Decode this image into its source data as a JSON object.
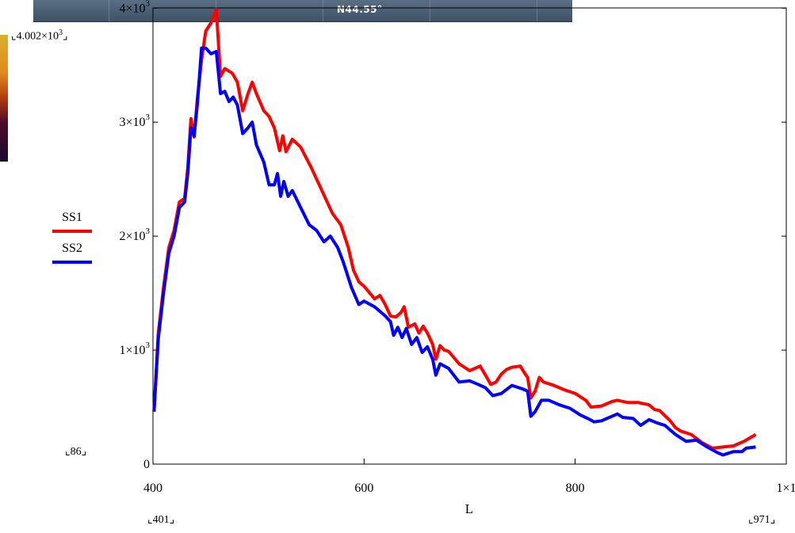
{
  "header_strip": {
    "label": "N44.55°"
  },
  "markers": {
    "ymax": "4.002×10",
    "ymax_exp": "3",
    "ymin": "86",
    "xmin": "401",
    "xmax": "971"
  },
  "chart_data": {
    "type": "line",
    "xlabel": "L",
    "ylabel": "",
    "xlim": [
      400,
      1000
    ],
    "ylim": [
      0,
      4002
    ],
    "x_ticks": [
      400,
      600,
      800,
      1000
    ],
    "x_tick_labels": [
      "400",
      "600",
      "800",
      "1×1"
    ],
    "y_ticks": [
      0,
      1000,
      2000,
      3000,
      4000
    ],
    "y_tick_labels": [
      {
        "base": "0",
        "exp": ""
      },
      {
        "base": "1×10",
        "exp": "3"
      },
      {
        "base": "2×10",
        "exp": "3"
      },
      {
        "base": "3×10",
        "exp": "3"
      },
      {
        "base": "4×10",
        "exp": "3"
      }
    ],
    "series": [
      {
        "name": "SS1",
        "color": "#ff0000",
        "points": [
          [
            401,
            460
          ],
          [
            405,
            1150
          ],
          [
            410,
            1550
          ],
          [
            415,
            1900
          ],
          [
            420,
            2050
          ],
          [
            425,
            2300
          ],
          [
            430,
            2330
          ],
          [
            433,
            2600
          ],
          [
            436,
            3030
          ],
          [
            439,
            2870
          ],
          [
            442,
            3200
          ],
          [
            446,
            3550
          ],
          [
            450,
            3800
          ],
          [
            455,
            3870
          ],
          [
            460,
            3990
          ],
          [
            464,
            3400
          ],
          [
            468,
            3470
          ],
          [
            475,
            3430
          ],
          [
            480,
            3350
          ],
          [
            485,
            3100
          ],
          [
            490,
            3250
          ],
          [
            494,
            3350
          ],
          [
            498,
            3250
          ],
          [
            505,
            3100
          ],
          [
            510,
            3050
          ],
          [
            515,
            2950
          ],
          [
            520,
            2750
          ],
          [
            523,
            2880
          ],
          [
            526,
            2740
          ],
          [
            532,
            2850
          ],
          [
            540,
            2780
          ],
          [
            550,
            2600
          ],
          [
            560,
            2400
          ],
          [
            570,
            2200
          ],
          [
            578,
            2100
          ],
          [
            585,
            1900
          ],
          [
            590,
            1700
          ],
          [
            595,
            1600
          ],
          [
            600,
            1560
          ],
          [
            610,
            1450
          ],
          [
            615,
            1480
          ],
          [
            620,
            1400
          ],
          [
            625,
            1300
          ],
          [
            630,
            1290
          ],
          [
            635,
            1330
          ],
          [
            638,
            1380
          ],
          [
            642,
            1200
          ],
          [
            648,
            1230
          ],
          [
            652,
            1150
          ],
          [
            656,
            1210
          ],
          [
            660,
            1150
          ],
          [
            665,
            1050
          ],
          [
            668,
            920
          ],
          [
            672,
            1040
          ],
          [
            676,
            1000
          ],
          [
            680,
            990
          ],
          [
            690,
            880
          ],
          [
            700,
            820
          ],
          [
            705,
            840
          ],
          [
            710,
            860
          ],
          [
            715,
            780
          ],
          [
            720,
            700
          ],
          [
            725,
            720
          ],
          [
            730,
            790
          ],
          [
            735,
            830
          ],
          [
            740,
            850
          ],
          [
            748,
            860
          ],
          [
            752,
            800
          ],
          [
            755,
            760
          ],
          [
            758,
            580
          ],
          [
            762,
            640
          ],
          [
            766,
            760
          ],
          [
            770,
            720
          ],
          [
            780,
            690
          ],
          [
            790,
            650
          ],
          [
            800,
            620
          ],
          [
            810,
            560
          ],
          [
            815,
            500
          ],
          [
            825,
            510
          ],
          [
            835,
            550
          ],
          [
            840,
            560
          ],
          [
            850,
            540
          ],
          [
            860,
            540
          ],
          [
            870,
            520
          ],
          [
            875,
            480
          ],
          [
            880,
            470
          ],
          [
            890,
            380
          ],
          [
            895,
            320
          ],
          [
            900,
            290
          ],
          [
            910,
            260
          ],
          [
            920,
            190
          ],
          [
            930,
            140
          ],
          [
            940,
            150
          ],
          [
            950,
            160
          ],
          [
            960,
            200
          ],
          [
            971,
            260
          ]
        ]
      },
      {
        "name": "SS2",
        "color": "#0000ff",
        "points": [
          [
            401,
            460
          ],
          [
            405,
            1100
          ],
          [
            410,
            1500
          ],
          [
            415,
            1850
          ],
          [
            420,
            2000
          ],
          [
            425,
            2250
          ],
          [
            430,
            2300
          ],
          [
            433,
            2550
          ],
          [
            436,
            2950
          ],
          [
            439,
            2880
          ],
          [
            442,
            3150
          ],
          [
            446,
            3650
          ],
          [
            450,
            3650
          ],
          [
            455,
            3600
          ],
          [
            460,
            3620
          ],
          [
            464,
            3250
          ],
          [
            468,
            3270
          ],
          [
            472,
            3180
          ],
          [
            476,
            3220
          ],
          [
            480,
            3150
          ],
          [
            485,
            2900
          ],
          [
            490,
            2950
          ],
          [
            494,
            3000
          ],
          [
            498,
            2800
          ],
          [
            505,
            2650
          ],
          [
            510,
            2450
          ],
          [
            515,
            2450
          ],
          [
            518,
            2550
          ],
          [
            521,
            2350
          ],
          [
            524,
            2480
          ],
          [
            528,
            2350
          ],
          [
            532,
            2400
          ],
          [
            540,
            2250
          ],
          [
            548,
            2100
          ],
          [
            555,
            2050
          ],
          [
            562,
            1950
          ],
          [
            568,
            2000
          ],
          [
            575,
            1900
          ],
          [
            580,
            1780
          ],
          [
            588,
            1550
          ],
          [
            595,
            1400
          ],
          [
            600,
            1430
          ],
          [
            610,
            1380
          ],
          [
            620,
            1300
          ],
          [
            625,
            1250
          ],
          [
            628,
            1130
          ],
          [
            632,
            1200
          ],
          [
            636,
            1110
          ],
          [
            640,
            1190
          ],
          [
            645,
            1050
          ],
          [
            650,
            1110
          ],
          [
            655,
            980
          ],
          [
            660,
            1030
          ],
          [
            665,
            920
          ],
          [
            668,
            780
          ],
          [
            672,
            880
          ],
          [
            680,
            840
          ],
          [
            690,
            720
          ],
          [
            700,
            730
          ],
          [
            708,
            700
          ],
          [
            715,
            670
          ],
          [
            722,
            600
          ],
          [
            730,
            620
          ],
          [
            740,
            690
          ],
          [
            750,
            660
          ],
          [
            755,
            640
          ],
          [
            758,
            420
          ],
          [
            762,
            460
          ],
          [
            768,
            560
          ],
          [
            775,
            560
          ],
          [
            785,
            520
          ],
          [
            795,
            490
          ],
          [
            805,
            430
          ],
          [
            812,
            400
          ],
          [
            818,
            370
          ],
          [
            825,
            380
          ],
          [
            830,
            400
          ],
          [
            840,
            440
          ],
          [
            845,
            410
          ],
          [
            855,
            400
          ],
          [
            862,
            340
          ],
          [
            870,
            390
          ],
          [
            878,
            360
          ],
          [
            885,
            340
          ],
          [
            895,
            260
          ],
          [
            905,
            200
          ],
          [
            915,
            210
          ],
          [
            925,
            150
          ],
          [
            935,
            100
          ],
          [
            940,
            80
          ],
          [
            950,
            110
          ],
          [
            958,
            110
          ],
          [
            962,
            140
          ],
          [
            971,
            150
          ]
        ]
      }
    ]
  }
}
